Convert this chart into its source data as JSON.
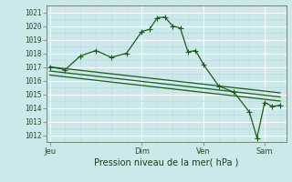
{
  "title": "",
  "xlabel": "Pression niveau de la mer( hPa )",
  "ylabel": "",
  "bg_color": "#cce8ea",
  "line_color": "#1a5c1a",
  "grid_color_major": "#ffffff",
  "grid_color_minor": "#b8d8dc",
  "ylim": [
    1011.5,
    1021.5
  ],
  "yticks": [
    1012,
    1013,
    1014,
    1015,
    1016,
    1017,
    1018,
    1019,
    1020,
    1021
  ],
  "xtick_labels": [
    "Jeu",
    "Dim",
    "Ven",
    "Sam"
  ],
  "xtick_positions": [
    0,
    3.0,
    5.0,
    7.0
  ],
  "xlim": [
    -0.1,
    7.7
  ],
  "series1_x": [
    0,
    0.5,
    1.0,
    1.5,
    2.0,
    2.5,
    3.0,
    3.25,
    3.5,
    3.75,
    4.0,
    4.25,
    4.5,
    4.75,
    5.0,
    5.5,
    6.0,
    6.5,
    6.75,
    7.0,
    7.25,
    7.5
  ],
  "series1_y": [
    1017.0,
    1016.8,
    1017.8,
    1018.2,
    1017.7,
    1018.0,
    1019.6,
    1019.75,
    1020.6,
    1020.65,
    1020.0,
    1019.85,
    1018.1,
    1018.2,
    1017.2,
    1015.6,
    1015.15,
    1013.7,
    1011.8,
    1014.4,
    1014.1,
    1014.2
  ],
  "series2_x": [
    0,
    7.5
  ],
  "series2_y": [
    1017.0,
    1015.1
  ],
  "series3_x": [
    0,
    7.5
  ],
  "series3_y": [
    1016.7,
    1014.8
  ],
  "series4_x": [
    0,
    7.5
  ],
  "series4_y": [
    1016.4,
    1014.5
  ]
}
